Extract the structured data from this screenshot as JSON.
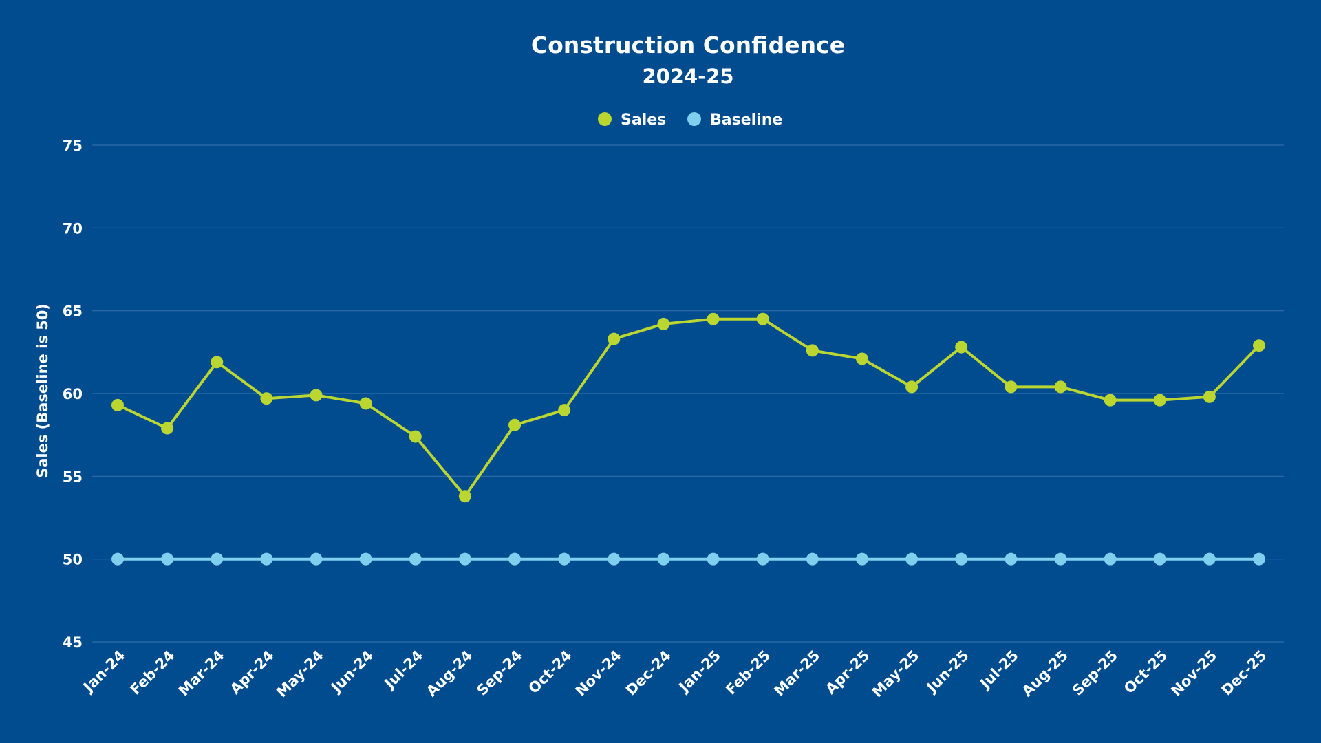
{
  "colors": {
    "background": "#004c8f",
    "gridline": "#2f6eaa",
    "sales": "#bcd631",
    "baseline": "#7fd0ee",
    "text": "#ffffff"
  },
  "chart_data": {
    "type": "line",
    "title": "Construction Confidence",
    "subtitle": "2024-25",
    "xlabel": "",
    "ylabel": "Sales (Baseline is 50)",
    "ylim": [
      45,
      75
    ],
    "yticks": [
      45,
      50,
      55,
      60,
      65,
      70,
      75
    ],
    "grid": true,
    "legend_position": "top-center",
    "categories": [
      "Jan-24",
      "Feb-24",
      "Mar-24",
      "Apr-24",
      "May-24",
      "Jun-24",
      "Jul-24",
      "Aug-24",
      "Sep-24",
      "Oct-24",
      "Nov-24",
      "Dec-24",
      "Jan-25",
      "Feb-25",
      "Mar-25",
      "Apr-25",
      "May-25",
      "Jun-25",
      "Jul-25",
      "Aug-25",
      "Sep-25",
      "Oct-25",
      "Nov-25",
      "Dec-25"
    ],
    "series": [
      {
        "name": "Sales",
        "color_key": "sales",
        "values": [
          59.3,
          57.9,
          61.9,
          59.7,
          59.9,
          59.4,
          57.4,
          53.8,
          58.1,
          59.0,
          63.3,
          64.2,
          64.5,
          64.5,
          62.6,
          62.1,
          60.4,
          62.8,
          60.4,
          60.4,
          59.6,
          59.6,
          59.8,
          62.9
        ]
      },
      {
        "name": "Baseline",
        "color_key": "baseline",
        "values": [
          50,
          50,
          50,
          50,
          50,
          50,
          50,
          50,
          50,
          50,
          50,
          50,
          50,
          50,
          50,
          50,
          50,
          50,
          50,
          50,
          50,
          50,
          50,
          50
        ]
      }
    ]
  }
}
